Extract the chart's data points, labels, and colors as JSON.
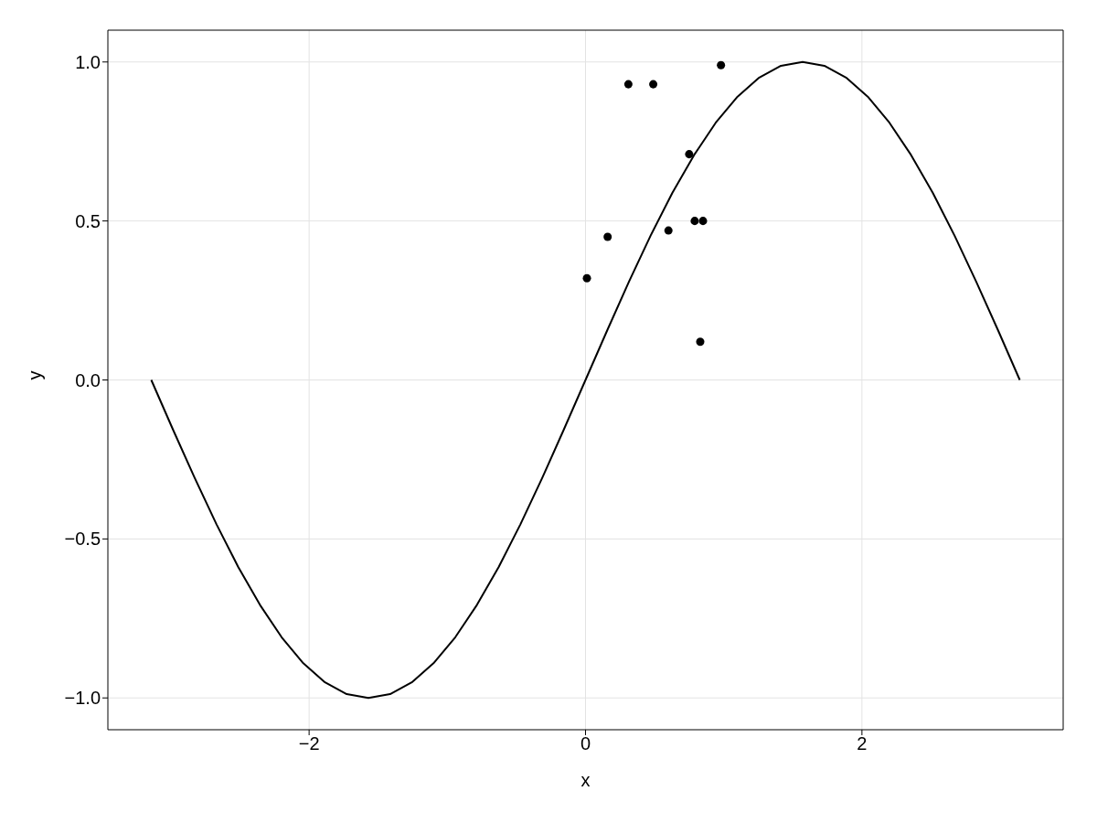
{
  "chart_data": {
    "type": "scatter",
    "xlabel": "x",
    "ylabel": "y",
    "xlim": [
      -3.456,
      3.456
    ],
    "ylim": [
      -1.1,
      1.1
    ],
    "xticks": [
      {
        "value": -2,
        "label": "−2"
      },
      0,
      2
    ],
    "yticks": [
      {
        "value": -1,
        "label": "−1.0"
      },
      {
        "value": -0.5,
        "label": "−0.5"
      },
      {
        "value": 0,
        "label": "0.0"
      },
      {
        "value": 0.5,
        "label": "0.5"
      },
      {
        "value": 1,
        "label": "1.0"
      }
    ],
    "grid": true,
    "series": [
      {
        "type": "line",
        "color": "#000000",
        "marker": "none",
        "line_style": "solid",
        "x": [
          -3.142,
          -2.985,
          -2.827,
          -2.67,
          -2.513,
          -2.356,
          -2.199,
          -2.042,
          -1.885,
          -1.728,
          -1.571,
          -1.414,
          -1.257,
          -1.1,
          -0.942,
          -0.785,
          -0.628,
          -0.471,
          -0.314,
          -0.157,
          0,
          0.157,
          0.314,
          0.471,
          0.628,
          0.785,
          0.942,
          1.1,
          1.257,
          1.414,
          1.571,
          1.728,
          1.885,
          2.042,
          2.199,
          2.356,
          2.513,
          2.67,
          2.827,
          2.985,
          3.142
        ],
        "values": [
          0,
          -0.156,
          -0.309,
          -0.454,
          -0.588,
          -0.707,
          -0.809,
          -0.891,
          -0.951,
          -0.988,
          -1,
          -0.988,
          -0.951,
          -0.891,
          -0.809,
          -0.707,
          -0.588,
          -0.454,
          -0.309,
          -0.156,
          0,
          0.156,
          0.309,
          0.454,
          0.588,
          0.707,
          0.809,
          0.891,
          0.951,
          0.988,
          1,
          0.988,
          0.951,
          0.891,
          0.809,
          0.707,
          0.588,
          0.454,
          0.309,
          0.156,
          0
        ]
      },
      {
        "color": "#000000",
        "marker": "circle",
        "x": [
          0.01,
          0.16,
          0.31,
          0.49,
          0.6,
          0.75,
          0.79,
          0.85,
          0.83,
          0.98
        ],
        "values": [
          0.32,
          0.45,
          0.93,
          0.93,
          0.47,
          0.71,
          0.5,
          0.5,
          0.12,
          0.99
        ]
      }
    ]
  }
}
